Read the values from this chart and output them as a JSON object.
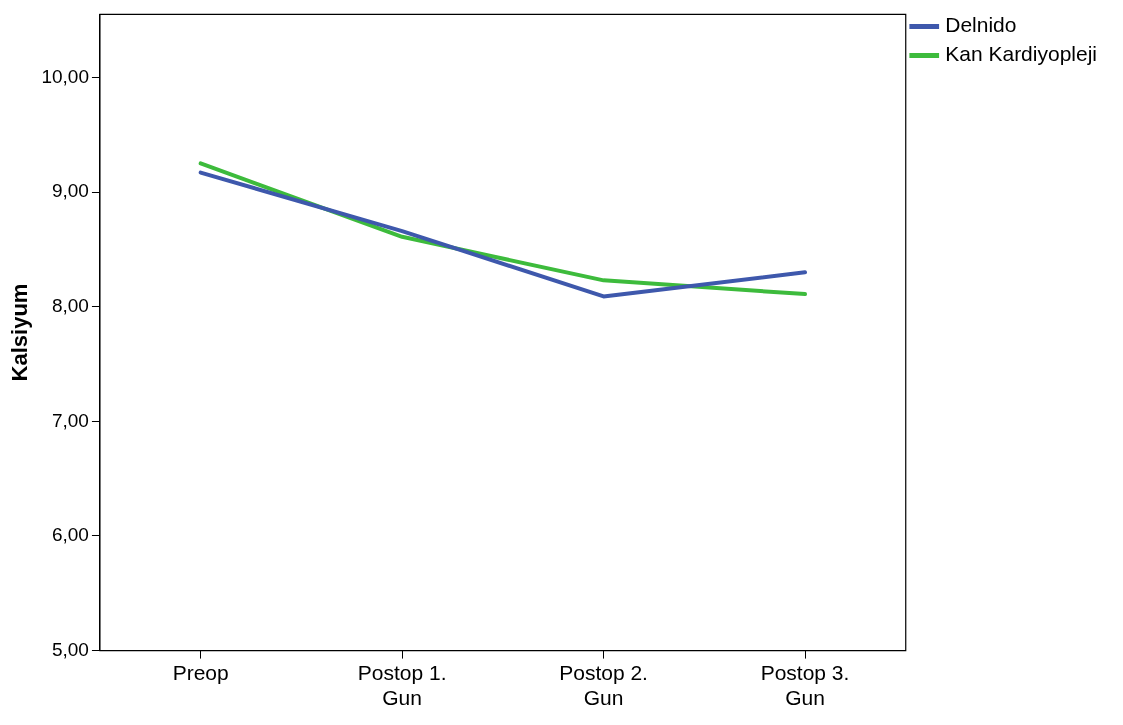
{
  "chart_data": {
    "type": "line",
    "ylabel": "Kalsiyum",
    "categories": [
      "Preop",
      "Postop 1. Gun",
      "Postop 2. Gun",
      "Postop 3. Gun"
    ],
    "series": [
      {
        "name": "Delnido",
        "color": "#3e58ac",
        "values": [
          9.17,
          8.66,
          8.09,
          8.3
        ]
      },
      {
        "name": "Kan Kardiyopleji",
        "color": "#3dbb3c",
        "values": [
          9.25,
          8.61,
          8.23,
          8.11
        ]
      }
    ],
    "ylim": [
      5,
      10.55
    ],
    "yticks": [
      {
        "value": 5,
        "label": "5,00"
      },
      {
        "value": 6,
        "label": "6,00"
      },
      {
        "value": 7,
        "label": "7,00"
      },
      {
        "value": 8,
        "label": "8,00"
      },
      {
        "value": 9,
        "label": "9,00"
      },
      {
        "value": 10,
        "label": "10,00"
      }
    ],
    "grid": false,
    "legend": "top right",
    "marker": "none",
    "line_style": "solid"
  }
}
